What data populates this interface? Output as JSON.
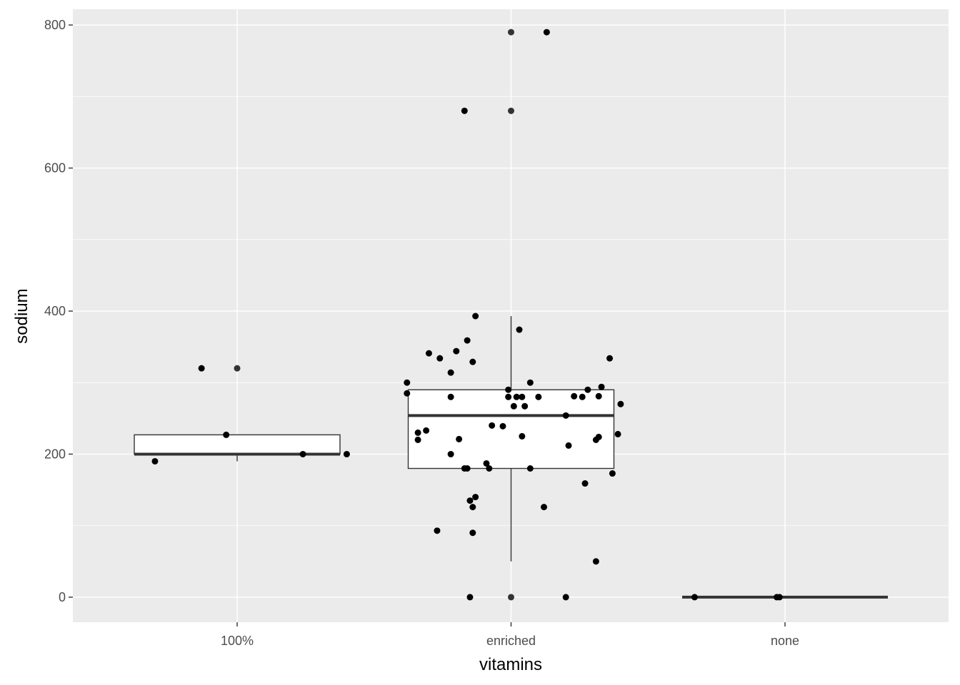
{
  "chart_data": {
    "type": "boxplot",
    "xlabel": "vitamins",
    "ylabel": "sodium",
    "categories": [
      "100%",
      "enriched",
      "none"
    ],
    "ylim": [
      -35,
      822
    ],
    "y_ticks": [
      0,
      200,
      400,
      600,
      800
    ],
    "grid": true,
    "colors": {
      "panel_bg": "#EBEBEB",
      "grid_major": "#FFFFFF",
      "box_fill": "#FFFFFF",
      "box_line": "#333333",
      "point": "#000000",
      "tick_text": "#4D4D4D"
    },
    "boxes": [
      {
        "category": "100%",
        "min": 190,
        "q1": 200,
        "median": 200,
        "q3": 227,
        "max": 227
      },
      {
        "category": "enriched",
        "min": 50,
        "q1": 180,
        "median": 254,
        "q3": 290,
        "max": 393
      },
      {
        "category": "none",
        "min": 0,
        "q1": 0,
        "median": 0,
        "q3": 0,
        "max": 0
      }
    ],
    "outliers": [
      {
        "category": "100%",
        "y": 320
      },
      {
        "category": "enriched",
        "y": 680
      },
      {
        "category": "enriched",
        "y": 790
      },
      {
        "category": "enriched",
        "y": 0
      }
    ],
    "points": [
      {
        "x": 0.7,
        "y": 190
      },
      {
        "x": 0.87,
        "y": 320
      },
      {
        "x": 0.96,
        "y": 227
      },
      {
        "x": 1.24,
        "y": 200
      },
      {
        "x": 1.4,
        "y": 200
      },
      {
        "x": 1.62,
        "y": 300
      },
      {
        "x": 1.62,
        "y": 285
      },
      {
        "x": 1.66,
        "y": 230
      },
      {
        "x": 1.66,
        "y": 220
      },
      {
        "x": 1.69,
        "y": 233
      },
      {
        "x": 1.7,
        "y": 341
      },
      {
        "x": 1.73,
        "y": 93
      },
      {
        "x": 1.74,
        "y": 334
      },
      {
        "x": 1.78,
        "y": 314
      },
      {
        "x": 1.78,
        "y": 200
      },
      {
        "x": 1.78,
        "y": 280
      },
      {
        "x": 1.8,
        "y": 344
      },
      {
        "x": 1.81,
        "y": 221
      },
      {
        "x": 1.83,
        "y": 180
      },
      {
        "x": 1.84,
        "y": 180
      },
      {
        "x": 1.83,
        "y": 680
      },
      {
        "x": 1.84,
        "y": 359
      },
      {
        "x": 1.85,
        "y": 0
      },
      {
        "x": 1.85,
        "y": 135
      },
      {
        "x": 1.86,
        "y": 329
      },
      {
        "x": 1.87,
        "y": 393
      },
      {
        "x": 1.86,
        "y": 126
      },
      {
        "x": 1.87,
        "y": 140
      },
      {
        "x": 1.86,
        "y": 90
      },
      {
        "x": 1.91,
        "y": 187
      },
      {
        "x": 1.92,
        "y": 180
      },
      {
        "x": 1.93,
        "y": 240
      },
      {
        "x": 1.97,
        "y": 239
      },
      {
        "x": 1.99,
        "y": 290
      },
      {
        "x": 1.99,
        "y": 280
      },
      {
        "x": 2.01,
        "y": 267
      },
      {
        "x": 2.02,
        "y": 280
      },
      {
        "x": 2.03,
        "y": 374
      },
      {
        "x": 2.04,
        "y": 280
      },
      {
        "x": 2.04,
        "y": 225
      },
      {
        "x": 2.05,
        "y": 267
      },
      {
        "x": 2.07,
        "y": 300
      },
      {
        "x": 2.07,
        "y": 180
      },
      {
        "x": 2.1,
        "y": 280
      },
      {
        "x": 2.12,
        "y": 126
      },
      {
        "x": 2.13,
        "y": 790
      },
      {
        "x": 2.2,
        "y": 254
      },
      {
        "x": 2.2,
        "y": 0
      },
      {
        "x": 2.21,
        "y": 212
      },
      {
        "x": 2.23,
        "y": 281
      },
      {
        "x": 2.26,
        "y": 280
      },
      {
        "x": 2.27,
        "y": 159
      },
      {
        "x": 2.28,
        "y": 290
      },
      {
        "x": 2.31,
        "y": 220
      },
      {
        "x": 2.31,
        "y": 50
      },
      {
        "x": 2.32,
        "y": 224
      },
      {
        "x": 2.32,
        "y": 281
      },
      {
        "x": 2.33,
        "y": 294
      },
      {
        "x": 2.36,
        "y": 334
      },
      {
        "x": 2.37,
        "y": 173
      },
      {
        "x": 2.39,
        "y": 228
      },
      {
        "x": 2.4,
        "y": 270
      },
      {
        "x": 2.67,
        "y": 0
      },
      {
        "x": 2.97,
        "y": 0
      },
      {
        "x": 2.98,
        "y": 0
      }
    ]
  }
}
